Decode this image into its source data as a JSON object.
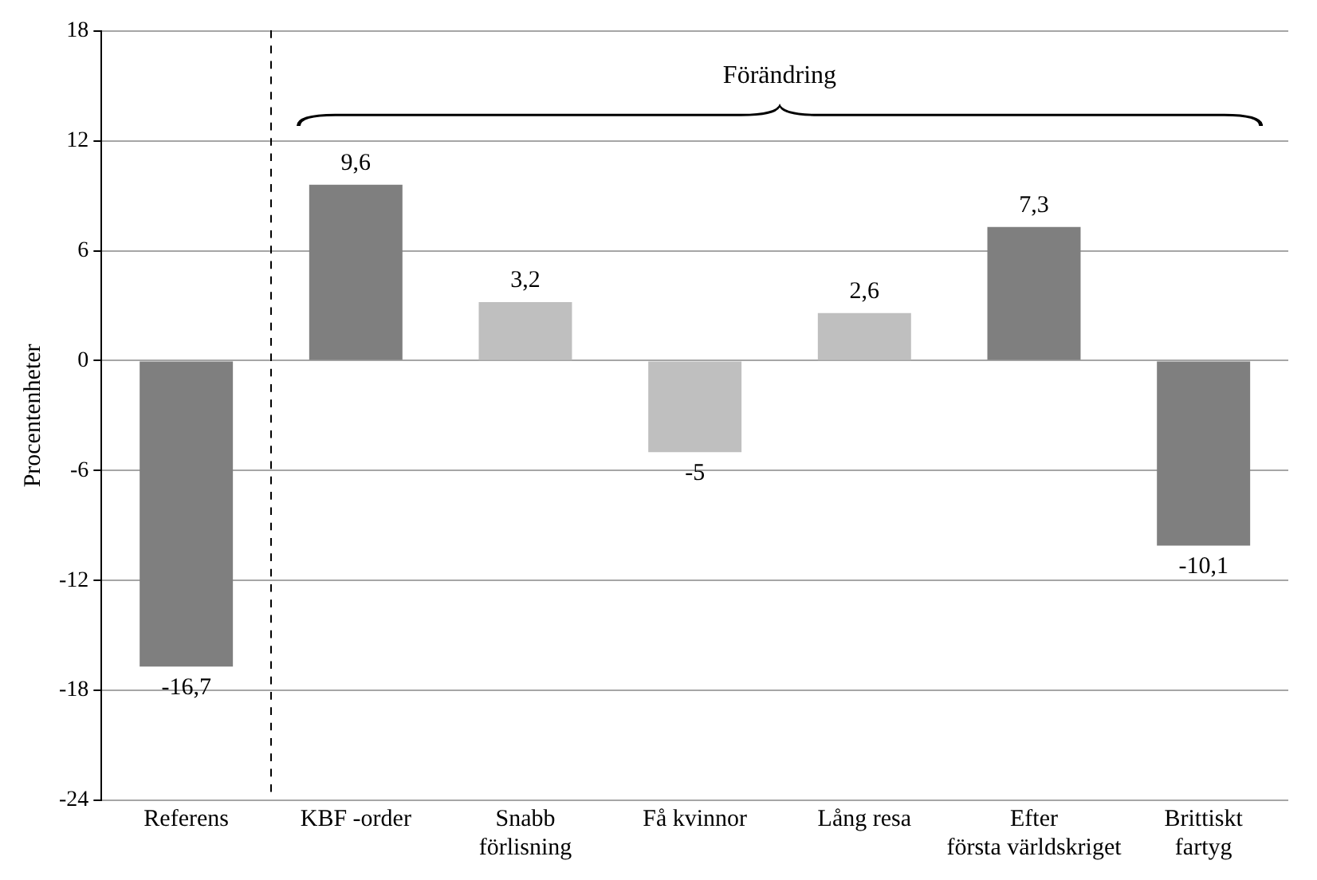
{
  "chart_data": {
    "type": "bar",
    "ylabel": "Procentenheter",
    "categories": [
      "Referens",
      "KBF -order",
      "Snabb förlisning",
      "Få kvinnor",
      "Lång resa",
      "Efter första världskriget",
      "Brittiskt fartyg"
    ],
    "values": [
      -16.7,
      9.6,
      3.2,
      -5,
      2.6,
      7.3,
      -10.1
    ],
    "colors": [
      "#7f7f7f",
      "#7f7f7f",
      "#bfbfbf",
      "#bfbfbf",
      "#bfbfbf",
      "#7f7f7f",
      "#7f7f7f"
    ],
    "value_labels": [
      "-16,7",
      "9,6",
      "3,2",
      "-5",
      "2,6",
      "7,3",
      "-10,1"
    ],
    "ylim": [
      -24,
      18
    ],
    "yticks": [
      -24,
      -18,
      -12,
      -6,
      0,
      6,
      12,
      18
    ],
    "grid": "y",
    "legend": false,
    "annotations": [
      "Förändring"
    ]
  }
}
